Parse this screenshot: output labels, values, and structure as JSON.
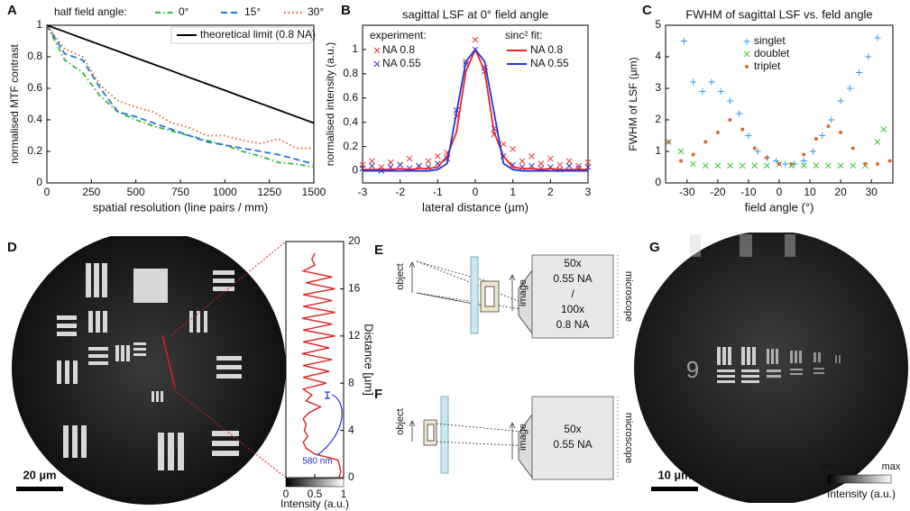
{
  "panel_labels": [
    "A",
    "B",
    "C",
    "D",
    "E",
    "F",
    "G"
  ],
  "chart_data": [
    {
      "type": "line",
      "legend_title": "half field angle:",
      "xlabel": "spatial resolution (line pairs / mm)",
      "ylabel": "normalised MTF contrast",
      "x": [
        0,
        100,
        200,
        300,
        400,
        500,
        600,
        700,
        800,
        900,
        1000,
        1100,
        1200,
        1300,
        1400,
        1500
      ],
      "xlim": [
        0,
        1500
      ],
      "xticks": [
        0,
        250,
        500,
        750,
        1000,
        1250,
        1500
      ],
      "ylim": [
        0,
        1
      ],
      "yticks": [
        0,
        0.2,
        0.4,
        0.6,
        0.8,
        1
      ],
      "series": [
        {
          "name": "0°",
          "color": "#33bb33",
          "linestyle": "dashdot",
          "values": [
            1,
            0.78,
            0.7,
            0.55,
            0.45,
            0.4,
            0.36,
            0.33,
            0.3,
            0.27,
            0.24,
            0.2,
            0.17,
            0.13,
            0.12,
            0.1
          ]
        },
        {
          "name": "15°",
          "color": "#2277dd",
          "linestyle": "dashed",
          "values": [
            1,
            0.82,
            0.78,
            0.6,
            0.45,
            0.42,
            0.38,
            0.34,
            0.3,
            0.26,
            0.24,
            0.22,
            0.2,
            0.18,
            0.15,
            0.12
          ]
        },
        {
          "name": "30°",
          "color": "#e06020",
          "linestyle": "dotted",
          "values": [
            1,
            0.85,
            0.8,
            0.62,
            0.52,
            0.48,
            0.45,
            0.38,
            0.35,
            0.3,
            0.3,
            0.27,
            0.25,
            0.28,
            0.22,
            0.22
          ]
        },
        {
          "name": "theoretical limit (0.8 NA)",
          "color": "#000000",
          "linestyle": "solid",
          "values": [
            1,
            0.959,
            0.917,
            0.876,
            0.835,
            0.793,
            0.752,
            0.711,
            0.669,
            0.628,
            0.587,
            0.545,
            0.504,
            0.463,
            0.421,
            0.38
          ]
        }
      ]
    },
    {
      "type": "scatter",
      "title": "sagittal LSF at 0° field angle",
      "legend_titles": [
        "experiment:",
        "sinc² fit:"
      ],
      "xlabel": "lateral distance (µm)",
      "ylabel": "normalised intensity (a.u.)",
      "x": [
        -3,
        -2.75,
        -2.5,
        -2.25,
        -2,
        -1.75,
        -1.5,
        -1.25,
        -1,
        -0.75,
        -0.5,
        -0.25,
        0,
        0.25,
        0.5,
        0.75,
        1,
        1.25,
        1.5,
        1.75,
        2,
        2.25,
        2.5,
        2.75,
        3
      ],
      "xlim": [
        -3,
        3
      ],
      "xticks": [
        -3,
        -2,
        -1,
        0,
        1,
        2,
        3
      ],
      "ylim": [
        -0.1,
        1.2
      ],
      "yticks": [
        0,
        0.2,
        0.4,
        0.6,
        0.8,
        1
      ],
      "series": [
        {
          "name": "NA 0.8",
          "color": "#ee3333",
          "marker": "x",
          "values": [
            0.05,
            0.08,
            0.03,
            0.07,
            0.05,
            0.1,
            0.04,
            0.08,
            0.12,
            0.15,
            0.45,
            0.9,
            1.08,
            0.85,
            0.3,
            0.22,
            0.18,
            0.08,
            0.12,
            0.06,
            0.1,
            0.05,
            0.08,
            0.04,
            0.07
          ]
        },
        {
          "name": "NA 0.55",
          "color": "#3333cc",
          "marker": "x",
          "values": [
            0.02,
            0.04,
            0,
            0.03,
            0.05,
            0.02,
            0.04,
            0.03,
            0.06,
            0.1,
            0.5,
            0.88,
            1,
            0.82,
            0.35,
            0.12,
            0.05,
            0.03,
            0.04,
            0.02,
            0.03,
            0.01,
            0.04,
            0.02,
            0.03
          ]
        },
        {
          "name": "NA 0.8",
          "color": "#ee2222",
          "linestyle": "solid",
          "values": [
            0.01,
            0.01,
            0.01,
            0.01,
            0.02,
            0.01,
            0.02,
            0.02,
            0.03,
            0.12,
            0.32,
            0.82,
            1,
            0.82,
            0.32,
            0.12,
            0.03,
            0.02,
            0.02,
            0.01,
            0.02,
            0.01,
            0.01,
            0.01,
            0.01
          ]
        },
        {
          "name": "NA 0.55",
          "color": "#2233dd",
          "linestyle": "solid",
          "values": [
            0,
            0,
            0,
            0,
            0,
            0,
            0,
            0,
            0.01,
            0.06,
            0.48,
            0.9,
            1,
            0.9,
            0.48,
            0.06,
            0.01,
            0,
            0,
            0,
            0,
            0,
            0,
            0,
            0
          ]
        }
      ]
    },
    {
      "type": "scatter",
      "title": "FWHM of sagittal LSF vs. feld angle",
      "xlabel": "field angle (°)",
      "ylabel": "FWHM of LSF (µm)",
      "xlim": [
        -37,
        37
      ],
      "xticks": [
        -30,
        -20,
        -10,
        0,
        10,
        20,
        30
      ],
      "ylim": [
        0,
        5
      ],
      "yticks": [
        0,
        1,
        2,
        3,
        4,
        5
      ],
      "series": [
        {
          "name": "singlet",
          "color": "#3399ee",
          "marker": "+",
          "x": [
            -31,
            -28,
            -25,
            -22,
            -19,
            -16,
            -13,
            -10,
            -7,
            -4,
            -1,
            2,
            5,
            8,
            11,
            14,
            17,
            20,
            23,
            26,
            29,
            32
          ],
          "values": [
            4.5,
            3.2,
            2.9,
            3.2,
            2.9,
            2.6,
            2.2,
            1.5,
            1,
            0.8,
            0.7,
            0.6,
            0.6,
            0.7,
            1,
            1.5,
            2,
            2.6,
            3,
            3.5,
            4,
            4.6
          ]
        },
        {
          "name": "doublet",
          "color": "#33cc33",
          "marker": "x",
          "x": [
            -36,
            -32,
            -28,
            -24,
            -20,
            -16,
            -12,
            -8,
            -4,
            0,
            4,
            8,
            12,
            16,
            20,
            24,
            28,
            32,
            34
          ],
          "values": [
            1.3,
            1,
            0.6,
            0.55,
            0.55,
            0.55,
            0.55,
            0.55,
            0.55,
            0.6,
            0.55,
            0.55,
            0.55,
            0.55,
            0.55,
            0.55,
            0.55,
            1.3,
            1.7
          ]
        },
        {
          "name": "triplet",
          "color": "#dd6633",
          "marker": "o",
          "x": [
            -36,
            -32,
            -28,
            -24,
            -20,
            -16,
            -12,
            -8,
            -4,
            0,
            4,
            8,
            12,
            16,
            20,
            24,
            28,
            32,
            36
          ],
          "values": [
            1.3,
            0.7,
            0.9,
            1.3,
            1.6,
            2,
            1.7,
            1.1,
            0.8,
            0.6,
            0.6,
            0.9,
            1.4,
            1.8,
            1.6,
            1.1,
            0.6,
            0.6,
            0.7
          ]
        }
      ]
    },
    {
      "type": "profile",
      "xlabel": "Intensity (a.u.)",
      "ylabel": "Distance [µm]",
      "annotation": "580 nm",
      "xlim": [
        0,
        1
      ],
      "xticks": [
        0,
        0.5,
        1
      ],
      "ylim": [
        0,
        20
      ],
      "yticks": [
        0,
        4,
        8,
        12,
        16,
        20
      ],
      "y": [
        0,
        0.5,
        1,
        1.5,
        2,
        2.5,
        3,
        3.5,
        4,
        4.5,
        5,
        5.5,
        6,
        6.5,
        7,
        7.5,
        8,
        8.5,
        9,
        9.5,
        10,
        10.5,
        11,
        11.5,
        12,
        12.5,
        13,
        13.5,
        14,
        14.5,
        15,
        15.5,
        16,
        16.5,
        17,
        17.5,
        18,
        18.5,
        19
      ],
      "series": [
        {
          "color": "#e02020",
          "values": [
            0.92,
            0.95,
            0.93,
            0.9,
            0.5,
            0.35,
            0.3,
            0.38,
            0.32,
            0.35,
            0.3,
            0.4,
            0.6,
            0.35,
            0.45,
            0.3,
            0.7,
            0.3,
            0.75,
            0.3,
            0.8,
            0.28,
            0.75,
            0.3,
            0.85,
            0.3,
            0.8,
            0.28,
            0.85,
            0.3,
            0.8,
            0.3,
            0.85,
            0.35,
            0.8,
            0.3,
            0.5,
            0.45,
            0.5
          ]
        }
      ]
    }
  ],
  "image_d": {
    "scale_bar": "20 µm"
  },
  "image_g": {
    "scale_bar": "10 µm",
    "digit": "9",
    "colorbar_min": "min",
    "colorbar_max": "max",
    "colorbar_label": "Intensity (a.u.)"
  },
  "diagram_e": {
    "object": "object",
    "image": "image",
    "objective": [
      "50x",
      "0.55 NA",
      "/",
      "100x",
      "0.8 NA"
    ],
    "microscope": "microscope"
  },
  "diagram_f": {
    "object": "object",
    "image": "image",
    "objective": [
      "50x",
      "0.55 NA"
    ],
    "microscope": "microscope"
  }
}
